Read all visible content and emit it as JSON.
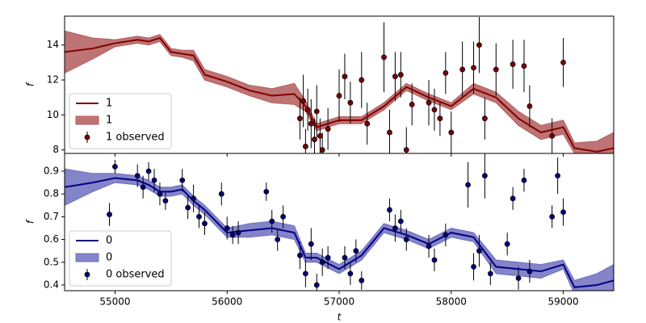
{
  "chart_data": [
    {
      "type": "line",
      "ylabel": "f",
      "x": [
        54550,
        54800,
        55000,
        55200,
        55300,
        55400,
        55500,
        55600,
        55700,
        55800,
        56000,
        56200,
        56400,
        56600,
        56700,
        56800,
        57000,
        57200,
        57400,
        57600,
        57800,
        58000,
        58200,
        58400,
        58600,
        58800,
        59000,
        59100,
        59300,
        59450
      ],
      "series": [
        {
          "name": "1",
          "color": "#800000",
          "values": [
            13.6,
            13.8,
            14.1,
            14.3,
            14.2,
            14.4,
            13.6,
            13.5,
            13.4,
            12.3,
            11.9,
            11.4,
            11.1,
            11.2,
            10.5,
            9.3,
            9.7,
            9.7,
            10.5,
            11.6,
            11.0,
            10.5,
            11.5,
            11.0,
            9.8,
            9.0,
            9.3,
            8.1,
            7.9,
            8.1
          ]
        }
      ],
      "band": {
        "name": "1",
        "color": "#b35c5c",
        "lower": [
          12.4,
          13.2,
          13.9,
          14.1,
          14.0,
          14.2,
          13.4,
          13.3,
          13.1,
          12.0,
          11.6,
          11.1,
          10.7,
          10.6,
          10.2,
          9.1,
          9.5,
          9.5,
          10.3,
          11.4,
          10.8,
          10.3,
          11.2,
          10.7,
          9.4,
          8.6,
          8.9,
          7.8,
          7.3,
          7.2
        ],
        "upper": [
          14.8,
          14.4,
          14.3,
          14.5,
          14.4,
          14.6,
          13.8,
          13.7,
          13.7,
          12.6,
          12.2,
          11.7,
          11.5,
          11.8,
          10.8,
          9.5,
          9.9,
          9.9,
          10.7,
          11.8,
          11.2,
          10.7,
          11.8,
          11.3,
          10.2,
          9.4,
          9.7,
          8.4,
          8.5,
          9.0
        ]
      },
      "observed": {
        "name": "1 observed",
        "color": "#800000",
        "x": [
          56650,
          56680,
          56700,
          56720,
          56750,
          56780,
          56800,
          56830,
          56850,
          56900,
          57000,
          57050,
          57100,
          57200,
          57250,
          57400,
          57450,
          57500,
          57550,
          57600,
          57650,
          57800,
          57850,
          57900,
          57950,
          58000,
          58100,
          58200,
          58250,
          58300,
          58400,
          58550,
          58650,
          58700,
          58900,
          59000
        ],
        "values": [
          9.8,
          10.8,
          8.2,
          10.3,
          9.5,
          8.6,
          10.2,
          8.8,
          8.0,
          9.2,
          11.1,
          12.2,
          10.7,
          12.0,
          9.5,
          13.3,
          9.0,
          12.2,
          12.3,
          8.0,
          10.6,
          10.7,
          10.3,
          9.8,
          12.4,
          9.0,
          12.6,
          12.7,
          14.0,
          9.8,
          12.6,
          12.9,
          12.8,
          10.5,
          8.8,
          13.0
        ],
        "errors": [
          1.2,
          1.5,
          1,
          1.2,
          1.4,
          1.2,
          1.5,
          1,
          1,
          1.2,
          1.5,
          1.3,
          1.2,
          1.6,
          1.2,
          2,
          1.3,
          1.4,
          1.3,
          1.3,
          1.2,
          1.3,
          1.2,
          1,
          1.2,
          1.2,
          1.6,
          1.5,
          1.6,
          1.2,
          1.5,
          1.4,
          1.5,
          1.2,
          1,
          1.4
        ]
      },
      "xlim": [
        54550,
        59450
      ],
      "ylim": [
        7.8,
        15.65
      ],
      "yticks": [
        8,
        10,
        12,
        14
      ],
      "legend": "lower left"
    },
    {
      "type": "line",
      "ylabel": "f",
      "xlabel": "t",
      "x": [
        54550,
        54800,
        55000,
        55200,
        55300,
        55400,
        55500,
        55600,
        55700,
        55800,
        56000,
        56200,
        56400,
        56600,
        56700,
        56800,
        57000,
        57200,
        57400,
        57600,
        57800,
        58000,
        58200,
        58400,
        58600,
        58800,
        59000,
        59100,
        59300,
        59450
      ],
      "series": [
        {
          "name": "0",
          "color": "#000080",
          "values": [
            0.83,
            0.85,
            0.87,
            0.86,
            0.84,
            0.81,
            0.81,
            0.82,
            0.77,
            0.73,
            0.63,
            0.64,
            0.65,
            0.63,
            0.52,
            0.52,
            0.47,
            0.53,
            0.65,
            0.62,
            0.58,
            0.63,
            0.61,
            0.48,
            0.47,
            0.46,
            0.49,
            0.39,
            0.4,
            0.42
          ]
        }
      ],
      "band": {
        "name": "0",
        "color": "#6f70c0",
        "lower": [
          0.75,
          0.81,
          0.85,
          0.84,
          0.82,
          0.79,
          0.79,
          0.8,
          0.75,
          0.71,
          0.61,
          0.61,
          0.62,
          0.6,
          0.5,
          0.5,
          0.45,
          0.51,
          0.63,
          0.6,
          0.56,
          0.61,
          0.59,
          0.45,
          0.44,
          0.43,
          0.47,
          0.36,
          0.35,
          0.35
        ],
        "upper": [
          0.91,
          0.89,
          0.89,
          0.88,
          0.86,
          0.83,
          0.83,
          0.84,
          0.79,
          0.75,
          0.65,
          0.67,
          0.68,
          0.66,
          0.54,
          0.54,
          0.49,
          0.55,
          0.67,
          0.64,
          0.6,
          0.65,
          0.63,
          0.51,
          0.5,
          0.49,
          0.51,
          0.42,
          0.45,
          0.49
        ]
      },
      "observed": {
        "name": "0 observed",
        "color": "#000080",
        "x": [
          54950,
          55000,
          55200,
          55250,
          55300,
          55350,
          55400,
          55450,
          55600,
          55650,
          55700,
          55750,
          55800,
          55950,
          56000,
          56050,
          56100,
          56350,
          56400,
          56450,
          56500,
          56650,
          56700,
          56750,
          56800,
          56850,
          56900,
          57050,
          57100,
          57150,
          57200,
          57450,
          57500,
          57550,
          57600,
          57800,
          57850,
          57950,
          58150,
          58200,
          58250,
          58300,
          58350,
          58500,
          58550,
          58600,
          58650,
          58700,
          58900,
          58950,
          59000
        ],
        "values": [
          0.71,
          0.92,
          0.88,
          0.83,
          0.9,
          0.86,
          0.8,
          0.77,
          0.86,
          0.74,
          0.78,
          0.7,
          0.67,
          0.8,
          0.65,
          0.62,
          0.63,
          0.81,
          0.68,
          0.6,
          0.7,
          0.53,
          0.45,
          0.58,
          0.4,
          0.5,
          0.52,
          0.52,
          0.45,
          0.55,
          0.42,
          0.73,
          0.65,
          0.68,
          0.6,
          0.57,
          0.51,
          0.62,
          0.84,
          0.48,
          0.55,
          0.88,
          0.45,
          0.58,
          0.78,
          0.43,
          0.86,
          0.46,
          0.7,
          0.88,
          0.72
        ],
        "errors": [
          0.05,
          0.03,
          0.05,
          0.05,
          0.04,
          0.05,
          0.05,
          0.04,
          0.05,
          0.05,
          0.06,
          0.05,
          0.05,
          0.05,
          0.05,
          0.04,
          0.05,
          0.04,
          0.05,
          0.05,
          0.05,
          0.06,
          0.06,
          0.07,
          0.05,
          0.06,
          0.05,
          0.05,
          0.05,
          0.05,
          0.04,
          0.05,
          0.06,
          0.05,
          0.05,
          0.05,
          0.05,
          0.05,
          0.1,
          0.06,
          0.07,
          0.1,
          0.05,
          0.05,
          0.05,
          0.05,
          0.05,
          0.05,
          0.05,
          0.08,
          0.06
        ]
      },
      "xlim": [
        54550,
        59450
      ],
      "ylim": [
        0.375,
        0.978
      ],
      "xticks": [
        55000,
        56000,
        57000,
        58000,
        59000
      ],
      "yticks": [
        0.4,
        0.5,
        0.6,
        0.7,
        0.8,
        0.9
      ],
      "legend": "lower left"
    }
  ]
}
